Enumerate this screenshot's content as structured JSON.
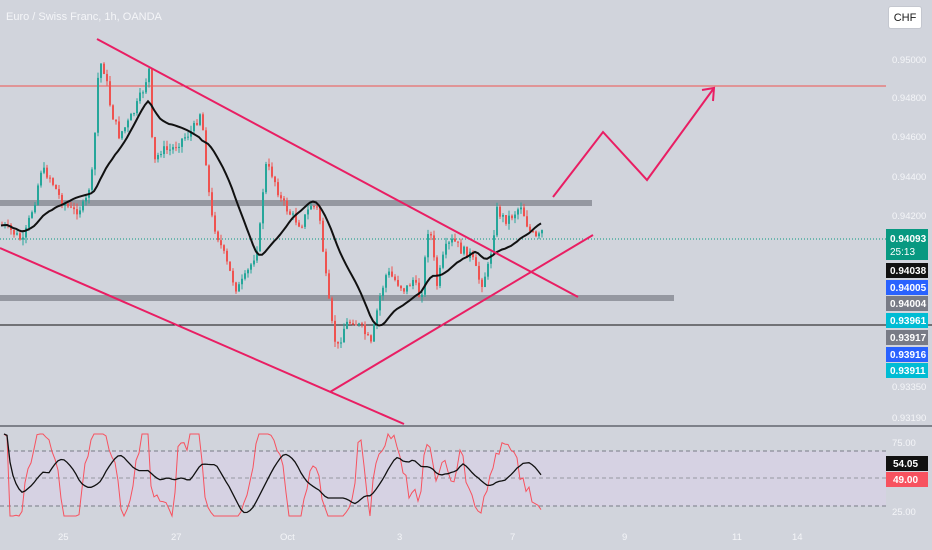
{
  "header": {
    "title": "Euro / Swiss Franc, 1h, OANDA",
    "currency_button": "CHF"
  },
  "colors": {
    "background": "#d1d4dc",
    "up": "#26a69a",
    "down": "#ef5350",
    "trendline": "#e91e63",
    "zone": "#9598a1",
    "ma": "#111111",
    "rsi": "#f7525f",
    "rsi_ma": "#111111",
    "rsi_band": "#d6d2e3",
    "grid_text": "#f4f5f8"
  },
  "chart_data": {
    "type": "candlestick",
    "price_axis": {
      "ticks": [
        0.95,
        0.948,
        0.946,
        0.944,
        0.942,
        0.9335,
        0.9319
      ],
      "tick_labels": [
        "0.95000",
        "0.94800",
        "0.94600",
        "0.94400",
        "0.94200",
        "0.93350",
        "0.93190"
      ]
    },
    "x_axis": {
      "tick_labels": [
        "25",
        "27",
        "Oct",
        "3",
        "7",
        "9",
        "11",
        "14"
      ]
    },
    "price_labels": [
      {
        "text": "0.94093",
        "sub": "25:13",
        "price": 0.94093,
        "color": "#089981",
        "text_color": "#ffffff"
      },
      {
        "text": "0.94038",
        "price": 0.94038,
        "color": "#111111",
        "text_color": "#ffffff"
      },
      {
        "text": "0.94005",
        "price": 0.94005,
        "color": "#2962ff",
        "text_color": "#ffffff"
      },
      {
        "text": "0.94004",
        "price": 0.94004,
        "color": "#787b86",
        "text_color": "#ffffff"
      },
      {
        "text": "0.93961",
        "price": 0.93961,
        "color": "#00bcd4",
        "text_color": "#ffffff"
      },
      {
        "text": "0.93917",
        "price": 0.93917,
        "color": "#787b86",
        "text_color": "#ffffff"
      },
      {
        "text": "0.93916",
        "price": 0.93916,
        "color": "#2962ff",
        "text_color": "#ffffff"
      },
      {
        "text": "0.93911",
        "price": 0.93911,
        "color": "#00bcd4",
        "text_color": "#ffffff"
      }
    ],
    "horizontal_lines": [
      {
        "price": 0.9489,
        "color": "#ef5350"
      },
      {
        "price": 0.9395,
        "color": "#111111"
      }
    ],
    "rsi": {
      "levels": [
        75,
        25
      ],
      "current": 54.05,
      "current_ma": 49.0,
      "tick_labels": [
        "75.00",
        "25.00"
      ],
      "value_labels": [
        "54.05",
        "49.00"
      ]
    }
  }
}
